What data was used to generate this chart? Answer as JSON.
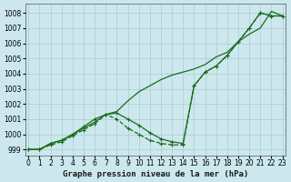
{
  "title": "Graphe pression niveau de la mer (hPa)",
  "background_color": "#cce8ee",
  "grid_color": "#aacccc",
  "line_color": "#1a6b1a",
  "x_labels": [
    "0",
    "1",
    "2",
    "3",
    "4",
    "5",
    "6",
    "7",
    "8",
    "9",
    "10",
    "11",
    "12",
    "13",
    "14",
    "15",
    "16",
    "17",
    "18",
    "19",
    "20",
    "21",
    "22",
    "23"
  ],
  "ylim": [
    998.6,
    1008.6
  ],
  "yticks": [
    999,
    1000,
    1001,
    1002,
    1003,
    1004,
    1005,
    1006,
    1007,
    1008
  ],
  "xlim": [
    -0.3,
    23.3
  ],
  "s1": [
    999.0,
    999.0,
    999.4,
    999.6,
    1000.0,
    1000.4,
    1000.8,
    1001.3,
    1001.5,
    1002.2,
    1002.8,
    1003.2,
    1003.6,
    1003.9,
    1004.1,
    1004.3,
    1004.6,
    1005.1,
    1005.4,
    1006.1,
    1006.6,
    1007.0,
    1008.1,
    1007.8
  ],
  "s2": [
    999.0,
    999.0,
    999.4,
    999.6,
    1000.0,
    1000.5,
    1001.0,
    1001.3,
    1001.4,
    1001.0,
    1000.6,
    1000.1,
    999.7,
    999.5,
    999.4,
    1003.2,
    1004.1,
    1004.5,
    1005.2,
    1006.1,
    1007.0,
    1008.0,
    1007.8,
    1007.8
  ],
  "s3": [
    999.0,
    999.0,
    999.3,
    999.5,
    999.9,
    1000.3,
    1000.7,
    1001.3,
    1001.0,
    1000.4,
    1000.0,
    999.6,
    999.4,
    999.3,
    999.3,
    1003.2,
    1004.1,
    1004.5,
    1005.2,
    1006.1,
    1007.0,
    1008.0,
    1007.8,
    1007.8
  ],
  "title_fontsize": 6.5,
  "tick_fontsize": 5.5
}
